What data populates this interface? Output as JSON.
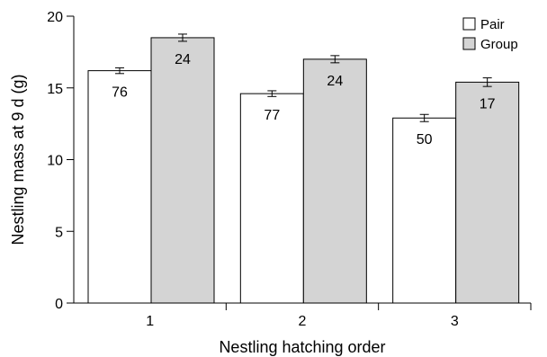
{
  "chart_data": {
    "type": "bar",
    "title": "",
    "xlabel": "Nestling hatching order",
    "ylabel": "Nestling mass at 9 d (g)",
    "categories": [
      "1",
      "2",
      "3"
    ],
    "series": [
      {
        "name": "Pair",
        "values": [
          16.2,
          14.6,
          12.9
        ],
        "errors": [
          0.2,
          0.2,
          0.25
        ],
        "sample_sizes": [
          "76",
          "77",
          "50"
        ],
        "color": "#ffffff"
      },
      {
        "name": "Group",
        "values": [
          18.5,
          17.0,
          15.4
        ],
        "errors": [
          0.25,
          0.25,
          0.3
        ],
        "sample_sizes": [
          "24",
          "24",
          "17"
        ],
        "color": "#d4d4d4"
      }
    ],
    "ylim": [
      0,
      20
    ],
    "yticks": [
      "0",
      "5",
      "10",
      "15",
      "20"
    ],
    "legend_position": "top-right",
    "grid": false
  }
}
